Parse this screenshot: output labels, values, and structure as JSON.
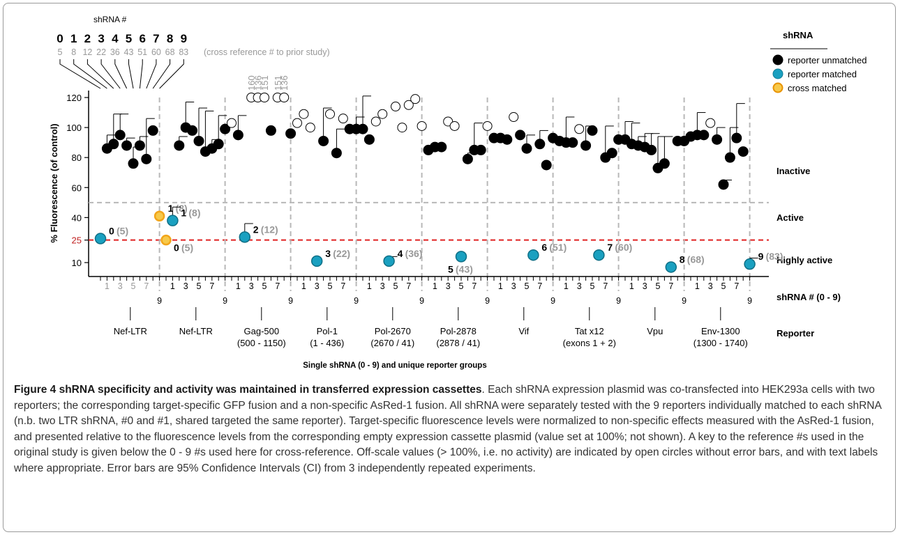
{
  "chart_data": {
    "type": "scatter",
    "title": "",
    "ylabel": "% Fluorescence (of control)",
    "xlabel": "Single shRNA (0 - 9) and unique reporter groups",
    "ylim": [
      0,
      120
    ],
    "y_ticks": [
      "120",
      "100",
      "80",
      "60",
      "40",
      "25",
      "10"
    ],
    "y_tick_values": [
      120,
      100,
      80,
      60,
      40,
      25,
      10
    ],
    "threshold_active": 50,
    "threshold_highly_active": 25,
    "threshold_color": "#e02020",
    "colors": {
      "unmatched": "#000000",
      "matched": "#1aa0c0",
      "cross": "#f2a51a",
      "open": "#ffffff",
      "gray": "#999999"
    },
    "legend": {
      "title": "shRNA",
      "items": [
        {
          "label": "reporter unmatched",
          "kind": "unmatched"
        },
        {
          "label": "reporter matched",
          "kind": "matched"
        },
        {
          "label": "cross matched",
          "kind": "cross"
        }
      ]
    },
    "zone_labels": [
      "Inactive",
      "Active",
      "Highly active"
    ],
    "row_labels": {
      "shrna": "shRNA # (0 - 9)",
      "reporter": "Reporter"
    },
    "key": {
      "header": "shRNA #",
      "numbers": [
        "0",
        "1",
        "2",
        "3",
        "4",
        "5",
        "6",
        "7",
        "8",
        "9"
      ],
      "refs": [
        "5",
        "8",
        "12",
        "22",
        "36",
        "43",
        "51",
        "60",
        "68",
        "83"
      ],
      "note": "(cross reference # to prior study)"
    },
    "groups": [
      {
        "name": "Nef-LTR",
        "sub": "",
        "ticks": [
          "1",
          "3",
          "5",
          "7",
          "9"
        ],
        "tick_color": "gray"
      },
      {
        "name": "Nef-LTR",
        "sub": "",
        "ticks": [
          "1",
          "3",
          "5",
          "7",
          "9"
        ],
        "tick_color": "black"
      },
      {
        "name": "Gag-500",
        "sub": "(500 - 1150)",
        "ticks": [
          "1",
          "3",
          "5",
          "7",
          "9"
        ],
        "tick_color": "black"
      },
      {
        "name": "Pol-1",
        "sub": "(1 - 436)",
        "ticks": [
          "1",
          "3",
          "5",
          "7",
          "9"
        ],
        "tick_color": "black"
      },
      {
        "name": "Pol-2670",
        "sub": "(2670 / 41)",
        "ticks": [
          "1",
          "3",
          "5",
          "7",
          "9"
        ],
        "tick_color": "black"
      },
      {
        "name": "Pol-2878",
        "sub": "(2878 / 41)",
        "ticks": [
          "1",
          "3",
          "5",
          "7",
          "9"
        ],
        "tick_color": "black"
      },
      {
        "name": "Vif",
        "sub": "",
        "ticks": [
          "1",
          "3",
          "5",
          "7",
          "9"
        ],
        "tick_color": "black"
      },
      {
        "name": "Tat x12",
        "sub": "(exons 1 + 2)",
        "ticks": [
          "1",
          "3",
          "5",
          "7",
          "9"
        ],
        "tick_color": "black"
      },
      {
        "name": "Vpu",
        "sub": "",
        "ticks": [
          "1",
          "3",
          "5",
          "7",
          "9"
        ],
        "tick_color": "black"
      },
      {
        "name": "Env-1300",
        "sub": "(1300 - 1740)",
        "ticks": [
          "1",
          "3",
          "5",
          "7",
          "9"
        ],
        "tick_color": "black"
      }
    ],
    "points": [
      [
        [
          26,
          0,
          "m",
          "0",
          "(5)"
        ],
        [
          86,
          9
        ],
        [
          89,
          20
        ],
        [
          95,
          14
        ],
        [
          88,
          5
        ],
        [
          76,
          11
        ],
        [
          88,
          6
        ],
        [
          79,
          27
        ],
        [
          98,
          0,
          "u"
        ],
        [
          41,
          0,
          "c",
          "1",
          "(8)"
        ]
      ],
      [
        [
          25,
          0,
          "c",
          "0",
          "(5)"
        ],
        [
          38,
          9,
          "m",
          "1",
          "(8)"
        ],
        [
          88,
          6
        ],
        [
          100,
          17
        ],
        [
          98,
          0
        ],
        [
          91,
          22
        ],
        [
          84,
          27
        ],
        [
          86,
          6
        ],
        [
          89,
          19
        ],
        [
          99,
          0
        ]
      ],
      [
        [
          103,
          0,
          "o"
        ],
        [
          95,
          13
        ],
        [
          27,
          9,
          "m",
          "2",
          "(12)"
        ],
        [
          120,
          0,
          "o",
          "160"
        ],
        [
          120,
          0,
          "o",
          "136"
        ],
        [
          120,
          0,
          "o",
          "151"
        ],
        [
          98,
          0
        ],
        [
          120,
          0,
          "o",
          "151"
        ],
        [
          120,
          0,
          "o",
          "136"
        ],
        [
          96,
          0
        ]
      ],
      [
        [
          103,
          0,
          "o"
        ],
        [
          109,
          0,
          "o"
        ],
        [
          100,
          0,
          "o"
        ],
        [
          11,
          0,
          "m",
          "3",
          "(22)"
        ],
        [
          91,
          22
        ],
        [
          109,
          0,
          "o"
        ],
        [
          83,
          16
        ],
        [
          106,
          0,
          "o"
        ],
        [
          99,
          0
        ],
        [
          99,
          8
        ]
      ],
      [
        [
          99,
          22
        ],
        [
          92,
          0
        ],
        [
          104,
          0,
          "o"
        ],
        [
          109,
          0,
          "o"
        ],
        [
          11,
          3,
          "m",
          "4",
          "(36)"
        ],
        [
          114,
          0,
          "o"
        ],
        [
          100,
          0,
          "o"
        ],
        [
          115,
          0,
          "o"
        ],
        [
          119,
          0,
          "o"
        ],
        [
          101,
          0,
          "o"
        ]
      ],
      [
        [
          85,
          0
        ],
        [
          87,
          0
        ],
        [
          87,
          0
        ],
        [
          104,
          0,
          "o"
        ],
        [
          101,
          0,
          "o"
        ],
        [
          14,
          0,
          "m",
          "5",
          "(43)"
        ],
        [
          79,
          4
        ],
        [
          85,
          18
        ],
        [
          85,
          0
        ],
        [
          101,
          0,
          "o"
        ]
      ],
      [
        [
          93,
          0
        ],
        [
          93,
          0
        ],
        [
          92,
          0
        ],
        [
          107,
          0,
          "o"
        ],
        [
          95,
          0
        ],
        [
          86,
          9
        ],
        [
          15,
          0,
          "m",
          "6",
          "(51)"
        ],
        [
          89,
          9
        ],
        [
          75,
          0
        ],
        [
          93,
          0
        ]
      ],
      [
        [
          91,
          0
        ],
        [
          90,
          17
        ],
        [
          90,
          0
        ],
        [
          99,
          0,
          "o"
        ],
        [
          88,
          13
        ],
        [
          98,
          0
        ],
        [
          15,
          0,
          "m",
          "7",
          "(60)"
        ],
        [
          80,
          21
        ],
        [
          83,
          0
        ],
        [
          92,
          0
        ]
      ],
      [
        [
          92,
          12
        ],
        [
          89,
          14
        ],
        [
          88,
          6
        ],
        [
          87,
          9
        ],
        [
          85,
          11
        ],
        [
          73,
          21
        ],
        [
          76,
          18
        ],
        [
          7,
          0,
          "m",
          "8",
          "(68)"
        ],
        [
          91,
          0
        ],
        [
          91,
          0
        ]
      ],
      [
        [
          94,
          0
        ],
        [
          95,
          15
        ],
        [
          95,
          0
        ],
        [
          103,
          0,
          "o"
        ],
        [
          92,
          8
        ],
        [
          62,
          3
        ],
        [
          80,
          20
        ],
        [
          93,
          23
        ],
        [
          84,
          0
        ],
        [
          9,
          4,
          "m",
          "9",
          "(83)"
        ]
      ]
    ]
  },
  "caption": {
    "title": "Figure 4 shRNA specificity and activity was maintained in transferred expression cassettes",
    "text": ". Each shRNA expression plasmid was co-transfected into HEK293a cells with two reporters; the corresponding target-specific GFP fusion and a non-specific AsRed-1 fusion. All shRNA were separately tested with the 9 reporters individually matched to each shRNA (n.b. two LTR shRNA, #0 and #1, shared targeted the same reporter). Target-specific fluorescence levels were normalized to non-specific effects measured with the AsRed-1 fusion, and presented relative to the fluorescence levels from the corresponding empty expression cassette plasmid (value set at 100%; not shown). A key to the reference #s used in the original study is given below the 0 - 9 #s used here for cross-reference. Off-scale values (> 100%, i.e. no activity) are indicated by open circles without error bars, and with text labels where appropriate. Error bars are 95% Confidence Intervals (CI) from 3 independently repeated experiments."
  }
}
